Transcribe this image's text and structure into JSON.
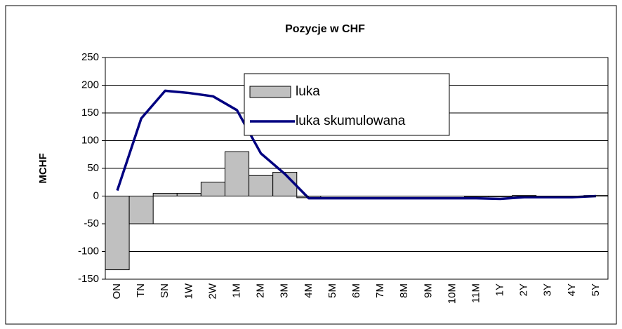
{
  "chart_data": {
    "type": "bar-line",
    "title": "Pozycje w CHF",
    "y_label": "MCHF",
    "categories": [
      "ON",
      "TN",
      "SN",
      "1W",
      "2W",
      "1M",
      "2M",
      "3M",
      "4M",
      "5M",
      "6M",
      "7M",
      "8M",
      "9M",
      "10M",
      "11M",
      "1Y",
      "2Y",
      "3Y",
      "4Y",
      "5Y"
    ],
    "series": [
      {
        "name": "luka",
        "kind": "bar",
        "color": "#c0c0c0",
        "values": [
          -133,
          -50,
          5,
          5,
          25,
          80,
          37,
          43,
          -3,
          0,
          0,
          0,
          0,
          0,
          0,
          -1,
          -1,
          1,
          0,
          0,
          1
        ]
      },
      {
        "name": "luka skumulowana",
        "kind": "line",
        "color": "#000080",
        "values": [
          10,
          140,
          190,
          186,
          180,
          155,
          77,
          40,
          -4,
          -4,
          -4,
          -4,
          -4,
          -4,
          -4,
          -4,
          -5,
          -2,
          -2,
          -2,
          0
        ]
      }
    ],
    "ylim": [
      -150,
      250
    ],
    "yticks": [
      -150,
      -100,
      -50,
      0,
      50,
      100,
      150,
      200,
      250
    ],
    "grid": true
  }
}
